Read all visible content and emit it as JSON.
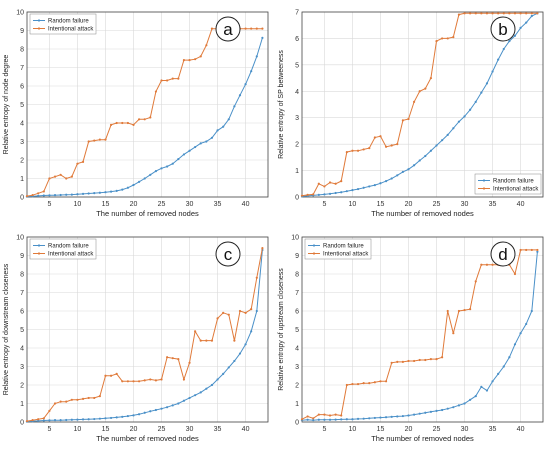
{
  "colors": {
    "random": "#4a90c8",
    "intentional": "#e07a3a",
    "grid": "#d9d9d9",
    "axis": "#444444"
  },
  "chart_data": [
    {
      "type": "line",
      "panel_label": "a",
      "xlabel": "The number of removed nodes",
      "ylabel": "Relative entropy of node degree",
      "xlim": [
        1,
        44
      ],
      "ylim": [
        0,
        10
      ],
      "xticks": [
        "5",
        "10",
        "15",
        "20",
        "25",
        "30",
        "35",
        "40"
      ],
      "yticks": [
        "0",
        "1",
        "2",
        "3",
        "4",
        "5",
        "6",
        "7",
        "8",
        "9",
        "10"
      ],
      "grid": true,
      "legend_position": "top-left",
      "x": [
        1,
        2,
        3,
        4,
        5,
        6,
        7,
        8,
        9,
        10,
        11,
        12,
        13,
        14,
        15,
        16,
        17,
        18,
        19,
        20,
        21,
        22,
        23,
        24,
        25,
        26,
        27,
        28,
        29,
        30,
        31,
        32,
        33,
        34,
        35,
        36,
        37,
        38,
        39,
        40,
        41,
        42,
        43
      ],
      "series": [
        {
          "name": "Random failure",
          "values": [
            0.02,
            0.04,
            0.06,
            0.08,
            0.09,
            0.1,
            0.11,
            0.12,
            0.13,
            0.15,
            0.17,
            0.19,
            0.21,
            0.23,
            0.26,
            0.29,
            0.33,
            0.4,
            0.5,
            0.65,
            0.82,
            1.0,
            1.2,
            1.4,
            1.55,
            1.65,
            1.8,
            2.05,
            2.3,
            2.5,
            2.7,
            2.9,
            3.0,
            3.2,
            3.6,
            3.8,
            4.2,
            4.9,
            5.5,
            6.1,
            6.8,
            7.6,
            8.6
          ]
        },
        {
          "name": "Intentional attack",
          "values": [
            0.05,
            0.1,
            0.2,
            0.3,
            1.0,
            1.1,
            1.2,
            1.0,
            1.1,
            1.8,
            1.9,
            3.0,
            3.05,
            3.1,
            3.1,
            3.9,
            4.0,
            4.0,
            4.0,
            3.9,
            4.2,
            4.2,
            4.3,
            5.7,
            6.3,
            6.3,
            6.4,
            6.4,
            7.4,
            7.4,
            7.45,
            7.6,
            8.2,
            9.1,
            9.1,
            9.1,
            9.1,
            9.1,
            9.1,
            9.1,
            9.1,
            9.1,
            9.1
          ]
        }
      ]
    },
    {
      "type": "line",
      "panel_label": "b",
      "xlabel": "The number of removed nodes",
      "ylabel": "Relative entropy of SP betweeness",
      "xlim": [
        1,
        44
      ],
      "ylim": [
        0,
        7
      ],
      "xticks": [
        "5",
        "10",
        "15",
        "20",
        "25",
        "30",
        "35",
        "40"
      ],
      "yticks": [
        "0",
        "1",
        "2",
        "3",
        "4",
        "5",
        "6",
        "7"
      ],
      "grid": true,
      "legend_position": "bottom-right",
      "x": [
        1,
        2,
        3,
        4,
        5,
        6,
        7,
        8,
        9,
        10,
        11,
        12,
        13,
        14,
        15,
        16,
        17,
        18,
        19,
        20,
        21,
        22,
        23,
        24,
        25,
        26,
        27,
        28,
        29,
        30,
        31,
        32,
        33,
        34,
        35,
        36,
        37,
        38,
        39,
        40,
        41,
        42,
        43
      ],
      "series": [
        {
          "name": "Random failure",
          "values": [
            0.02,
            0.04,
            0.06,
            0.08,
            0.1,
            0.12,
            0.15,
            0.18,
            0.22,
            0.26,
            0.3,
            0.35,
            0.4,
            0.45,
            0.52,
            0.6,
            0.7,
            0.82,
            0.95,
            1.05,
            1.2,
            1.38,
            1.55,
            1.75,
            1.95,
            2.15,
            2.35,
            2.6,
            2.85,
            3.05,
            3.3,
            3.6,
            3.95,
            4.3,
            4.75,
            5.2,
            5.6,
            5.9,
            6.1,
            6.4,
            6.6,
            6.85,
            6.95
          ]
        },
        {
          "name": "Intentional attack",
          "values": [
            0.05,
            0.08,
            0.1,
            0.5,
            0.4,
            0.55,
            0.5,
            0.6,
            1.7,
            1.75,
            1.75,
            1.8,
            1.85,
            2.25,
            2.3,
            1.9,
            1.95,
            2.0,
            2.9,
            2.95,
            3.6,
            4.0,
            4.1,
            4.5,
            5.9,
            6.0,
            6.0,
            6.05,
            6.9,
            6.95,
            6.95,
            6.95,
            6.95,
            6.95,
            6.95,
            6.95,
            6.95,
            6.95,
            6.95,
            6.95,
            6.95,
            6.95,
            6.95
          ]
        }
      ]
    },
    {
      "type": "line",
      "panel_label": "c",
      "xlabel": "The number of removed nodes",
      "ylabel": "Relative entropy of downstream closeness",
      "xlim": [
        1,
        44
      ],
      "ylim": [
        0,
        10
      ],
      "xticks": [
        "5",
        "10",
        "15",
        "20",
        "25",
        "30",
        "35",
        "40"
      ],
      "yticks": [
        "0",
        "1",
        "2",
        "3",
        "4",
        "5",
        "6",
        "7",
        "8",
        "9",
        "10"
      ],
      "grid": true,
      "legend_position": "top-left",
      "x": [
        1,
        2,
        3,
        4,
        5,
        6,
        7,
        8,
        9,
        10,
        11,
        12,
        13,
        14,
        15,
        16,
        17,
        18,
        19,
        20,
        21,
        22,
        23,
        24,
        25,
        26,
        27,
        28,
        29,
        30,
        31,
        32,
        33,
        34,
        35,
        36,
        37,
        38,
        39,
        40,
        41,
        42,
        43
      ],
      "series": [
        {
          "name": "Random failure",
          "values": [
            0.02,
            0.04,
            0.06,
            0.08,
            0.09,
            0.1,
            0.1,
            0.11,
            0.12,
            0.13,
            0.14,
            0.15,
            0.16,
            0.18,
            0.2,
            0.22,
            0.25,
            0.28,
            0.32,
            0.36,
            0.42,
            0.5,
            0.58,
            0.65,
            0.72,
            0.8,
            0.9,
            1.0,
            1.15,
            1.3,
            1.45,
            1.6,
            1.8,
            2.0,
            2.3,
            2.6,
            2.95,
            3.3,
            3.7,
            4.2,
            4.9,
            6.0,
            9.3
          ]
        },
        {
          "name": "Intentional attack",
          "values": [
            0.05,
            0.1,
            0.15,
            0.2,
            0.6,
            1.0,
            1.1,
            1.1,
            1.2,
            1.2,
            1.25,
            1.3,
            1.3,
            1.4,
            2.5,
            2.5,
            2.6,
            2.2,
            2.2,
            2.2,
            2.2,
            2.25,
            2.3,
            2.25,
            2.3,
            3.5,
            3.45,
            3.4,
            2.3,
            3.2,
            4.9,
            4.4,
            4.4,
            4.4,
            5.6,
            5.9,
            5.8,
            4.4,
            6.0,
            5.9,
            6.1,
            7.8,
            9.4
          ]
        }
      ]
    },
    {
      "type": "line",
      "panel_label": "d",
      "xlabel": "The number of removed nodes",
      "ylabel": "Relative entropy of upstream closeness",
      "xlim": [
        1,
        44
      ],
      "ylim": [
        0,
        10
      ],
      "xticks": [
        "5",
        "10",
        "15",
        "20",
        "25",
        "30",
        "35",
        "40"
      ],
      "yticks": [
        "0",
        "1",
        "2",
        "3",
        "4",
        "5",
        "6",
        "7",
        "8",
        "9",
        "10"
      ],
      "grid": true,
      "legend_position": "top-left",
      "x": [
        1,
        2,
        3,
        4,
        5,
        6,
        7,
        8,
        9,
        10,
        11,
        12,
        13,
        14,
        15,
        16,
        17,
        18,
        19,
        20,
        21,
        22,
        23,
        24,
        25,
        26,
        27,
        28,
        29,
        30,
        31,
        32,
        33,
        34,
        35,
        36,
        37,
        38,
        39,
        40,
        41,
        42,
        43
      ],
      "series": [
        {
          "name": "Random failure",
          "values": [
            0.1,
            0.12,
            0.1,
            0.12,
            0.12,
            0.12,
            0.13,
            0.14,
            0.15,
            0.15,
            0.17,
            0.18,
            0.2,
            0.22,
            0.24,
            0.26,
            0.28,
            0.3,
            0.32,
            0.35,
            0.4,
            0.45,
            0.5,
            0.55,
            0.6,
            0.65,
            0.72,
            0.8,
            0.9,
            1.0,
            1.2,
            1.4,
            1.9,
            1.7,
            2.2,
            2.6,
            3.0,
            3.5,
            4.2,
            4.8,
            5.3,
            6.0,
            9.2
          ]
        },
        {
          "name": "Intentional attack",
          "values": [
            0.15,
            0.3,
            0.2,
            0.4,
            0.4,
            0.35,
            0.4,
            0.35,
            2.0,
            2.05,
            2.05,
            2.1,
            2.1,
            2.15,
            2.2,
            2.2,
            3.2,
            3.25,
            3.25,
            3.3,
            3.3,
            3.35,
            3.35,
            3.4,
            3.4,
            3.5,
            6.0,
            4.8,
            6.0,
            6.05,
            6.1,
            7.6,
            8.5,
            8.5,
            8.5,
            8.5,
            8.5,
            8.5,
            8.0,
            9.3,
            9.3,
            9.3,
            9.3
          ]
        }
      ]
    }
  ]
}
